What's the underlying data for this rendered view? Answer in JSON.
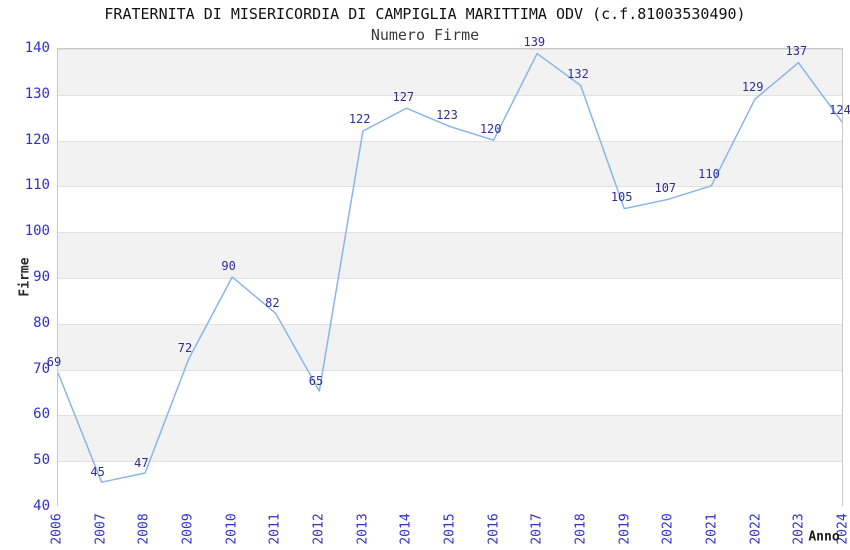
{
  "chart_data": {
    "type": "line",
    "title": "FRATERNITA DI MISERICORDIA DI CAMPIGLIA MARITTIMA ODV (c.f.81003530490)",
    "subtitle": "Numero Firme",
    "xlabel": "Anno",
    "ylabel": "Firme",
    "categories": [
      "2006",
      "2007",
      "2008",
      "2009",
      "2010",
      "2011",
      "2012",
      "2013",
      "2014",
      "2015",
      "2016",
      "2017",
      "2018",
      "2019",
      "2020",
      "2021",
      "2022",
      "2023",
      "2024"
    ],
    "values": [
      69,
      45,
      47,
      72,
      90,
      82,
      65,
      122,
      127,
      123,
      120,
      139,
      132,
      105,
      107,
      110,
      129,
      137,
      124
    ],
    "ylim": [
      40,
      140
    ],
    "ytick_step": 10,
    "grid": "horizontal-bands",
    "legend": "none",
    "data_labels_shown": true,
    "colors": {
      "line": "#8ab5e8",
      "tick_label": "#2f2fcc",
      "data_label": "#2e2e99",
      "band_gray": "#f2f2f2",
      "band_white": "#ffffff",
      "grid_line": "#e1e1e1",
      "plot_border": "#c8c8c8",
      "title": "#111111",
      "subtitle": "#3a3a3a",
      "axis_title": "#2b2b2b"
    }
  }
}
